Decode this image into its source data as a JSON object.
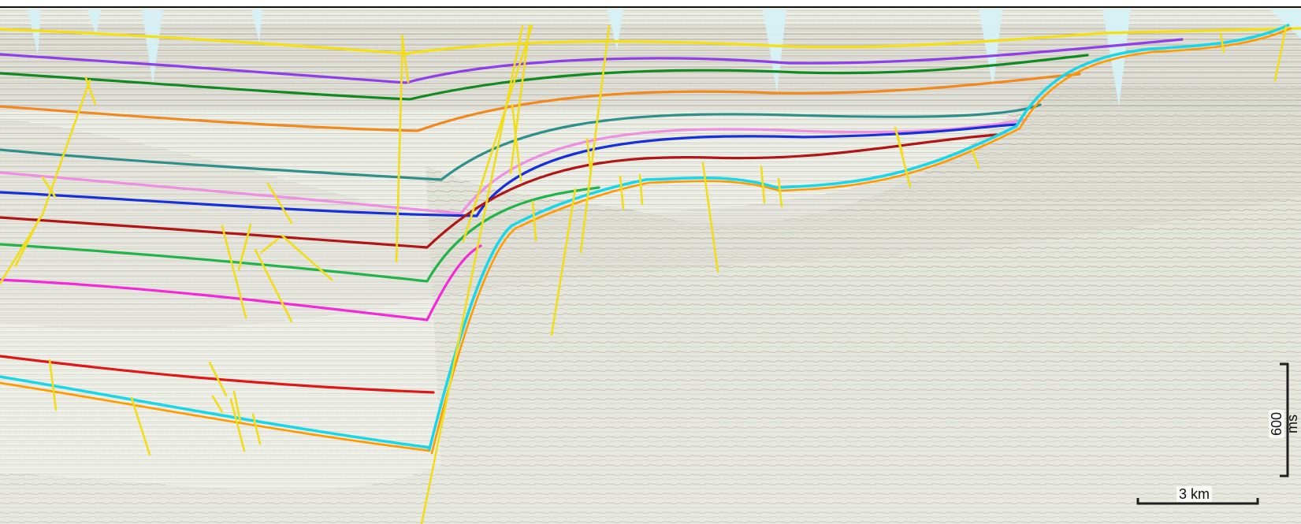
{
  "image": {
    "description": "",
    "scale": {
      "time": "600 ms",
      "distance": "3 km"
    },
    "horizon_colors": {
      "yellow": "#f4df13",
      "purple": "#8f3fe8",
      "green": "#118a22",
      "orange": "#f08a20",
      "teal": "#2f8f8b",
      "pink": "#ed8fe2",
      "blue": "#1730d9",
      "red": "#b01616",
      "brightgreen": "#23b34b",
      "magenta": "#f22bd7",
      "deep_red": "#e01717",
      "cyan": "#19d7e8",
      "orange2": "#ff9a00"
    }
  }
}
